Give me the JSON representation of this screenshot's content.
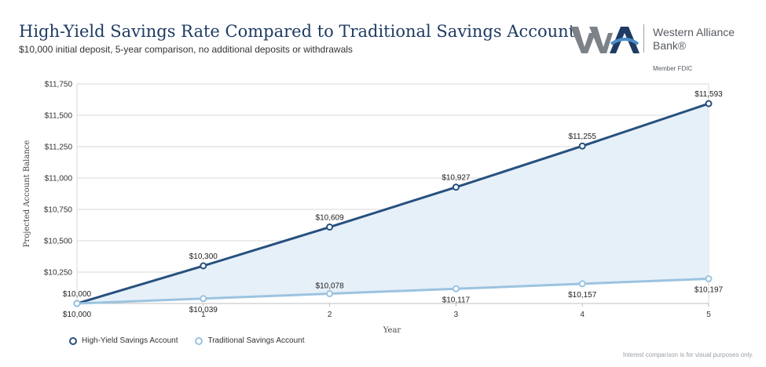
{
  "header": {
    "title": "High-Yield Savings Rate Compared to Traditional Savings Account",
    "subtitle": "$10,000 initial deposit, 5-year comparison, no additional deposits or withdrawals"
  },
  "brand": {
    "name_line1": "Western Alliance",
    "name_line2": "Bank®",
    "member": "Member FDIC",
    "logo_icon": "wab-logo-icon"
  },
  "footnote": "Interest comparison is for visual purposes only.",
  "colors": {
    "high_yield": "#27507e",
    "traditional": "#9cc3e0",
    "area": "#e6f0f9",
    "grid": "#d9d9d9",
    "title": "#1f3b63"
  },
  "chart_data": {
    "type": "line",
    "xlabel": "Year",
    "ylabel": "Projected Account Balance",
    "x": [
      0,
      1,
      2,
      3,
      4,
      5
    ],
    "ylim": [
      10000,
      11750
    ],
    "yticks": [
      "$10,250",
      "$10,500",
      "$10,750",
      "$11,000",
      "$11,250",
      "$11,500",
      "$11,750"
    ],
    "ytick_values": [
      10250,
      10500,
      10750,
      11000,
      11250,
      11500,
      11750
    ],
    "xtick_labels": [
      "",
      "1",
      "2",
      "3",
      "4",
      "5"
    ],
    "grid": true,
    "legend": "bottom-left",
    "series": [
      {
        "name": "High-Yield Savings Account",
        "values": [
          10000,
          10300,
          10609,
          10927,
          11255,
          11593
        ],
        "labels": [
          "$10,000",
          "$10,300",
          "$10,609",
          "$10,927",
          "$11,255",
          "$11,593"
        ]
      },
      {
        "name": "Traditional Savings Account",
        "values": [
          10000,
          10039,
          10078,
          10117,
          10157,
          10197
        ],
        "labels": [
          "$10,000",
          "$10,039",
          "$10,078",
          "$10,117",
          "$10,157",
          "$10,197"
        ]
      }
    ]
  }
}
